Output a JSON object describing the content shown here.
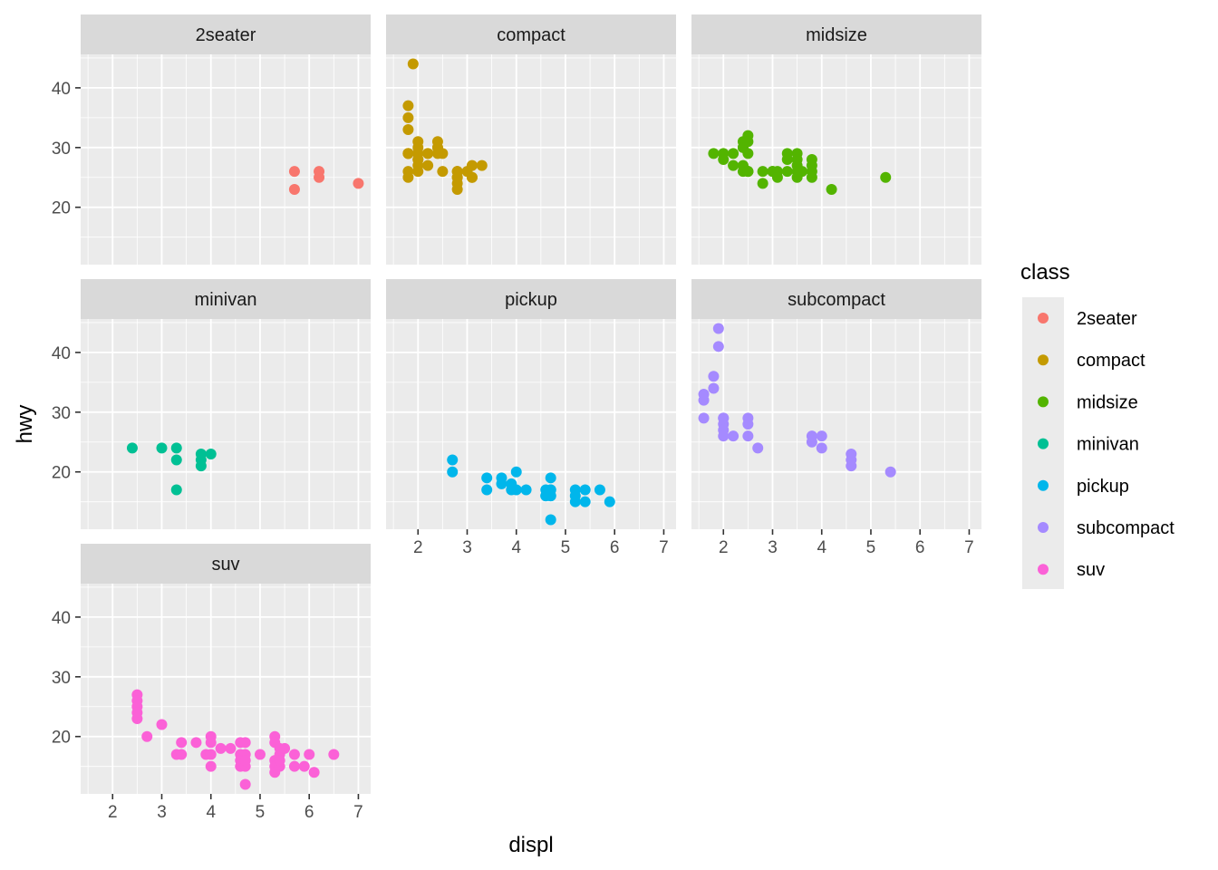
{
  "chart_data": {
    "type": "scatter",
    "xlabel": "displ",
    "ylabel": "hwy",
    "xlim": [
      1.35,
      7.25
    ],
    "ylim": [
      10.4,
      45.6
    ],
    "x_ticks": [
      2,
      3,
      4,
      5,
      6,
      7
    ],
    "y_ticks": [
      20,
      30,
      40
    ],
    "grid": true,
    "legend": {
      "title": "class",
      "placement": "right",
      "entries": [
        "2seater",
        "compact",
        "midsize",
        "minivan",
        "pickup",
        "subcompact",
        "suv"
      ]
    },
    "colors": {
      "2seater": "#F8766D",
      "compact": "#C49A00",
      "midsize": "#53B400",
      "minivan": "#00C094",
      "pickup": "#00B6EB",
      "subcompact": "#A58AFF",
      "suv": "#FB61D7"
    },
    "facets": [
      {
        "name": "2seater",
        "points": [
          [
            5.7,
            26
          ],
          [
            5.7,
            23
          ],
          [
            6.2,
            26
          ],
          [
            6.2,
            25
          ],
          [
            7.0,
            24
          ]
        ]
      },
      {
        "name": "compact",
        "points": [
          [
            1.8,
            29
          ],
          [
            1.8,
            29
          ],
          [
            2.0,
            31
          ],
          [
            2.0,
            30
          ],
          [
            2.8,
            26
          ],
          [
            2.8,
            26
          ],
          [
            3.1,
            27
          ],
          [
            1.8,
            26
          ],
          [
            1.8,
            25
          ],
          [
            2.0,
            28
          ],
          [
            2.0,
            27
          ],
          [
            2.8,
            25
          ],
          [
            2.8,
            25
          ],
          [
            3.1,
            25
          ],
          [
            3.1,
            25
          ],
          [
            2.4,
            30
          ],
          [
            2.4,
            30
          ],
          [
            2.5,
            26
          ],
          [
            2.5,
            29
          ],
          [
            1.8,
            29
          ],
          [
            1.9,
            44
          ],
          [
            1.8,
            37
          ],
          [
            1.8,
            35
          ],
          [
            1.8,
            33
          ],
          [
            2.0,
            29
          ],
          [
            2.0,
            26
          ],
          [
            2.2,
            27
          ],
          [
            2.2,
            29
          ],
          [
            2.4,
            31
          ],
          [
            2.4,
            29
          ],
          [
            3.0,
            26
          ],
          [
            3.3,
            27
          ],
          [
            2.8,
            23
          ],
          [
            2.8,
            24
          ],
          [
            2.0,
            28
          ],
          [
            2.2,
            29
          ]
        ]
      },
      {
        "name": "midsize",
        "points": [
          [
            2.4,
            27
          ],
          [
            2.4,
            30
          ],
          [
            3.1,
            26
          ],
          [
            3.5,
            29
          ],
          [
            3.6,
            26
          ],
          [
            2.4,
            26
          ],
          [
            3.0,
            26
          ],
          [
            3.3,
            28
          ],
          [
            3.8,
            26
          ],
          [
            3.8,
            27
          ],
          [
            3.8,
            28
          ],
          [
            2.4,
            31
          ],
          [
            2.4,
            30
          ],
          [
            2.5,
            32
          ],
          [
            2.5,
            31
          ],
          [
            2.5,
            29
          ],
          [
            2.5,
            26
          ],
          [
            3.3,
            29
          ],
          [
            3.5,
            28
          ],
          [
            2.5,
            26
          ],
          [
            2.8,
            26
          ],
          [
            2.8,
            24
          ],
          [
            3.0,
            26
          ],
          [
            3.5,
            25
          ],
          [
            4.2,
            23
          ],
          [
            5.3,
            25
          ],
          [
            1.8,
            29
          ],
          [
            2.0,
            29
          ],
          [
            2.2,
            29
          ],
          [
            2.0,
            28
          ],
          [
            2.2,
            27
          ],
          [
            2.5,
            26
          ],
          [
            3.5,
            27
          ],
          [
            3.5,
            26
          ],
          [
            3.1,
            25
          ],
          [
            3.3,
            26
          ],
          [
            3.8,
            25
          ]
        ]
      },
      {
        "name": "minivan",
        "points": [
          [
            2.4,
            24
          ],
          [
            3.0,
            24
          ],
          [
            3.3,
            22
          ],
          [
            3.3,
            24
          ],
          [
            3.3,
            17
          ],
          [
            3.8,
            22
          ],
          [
            3.8,
            21
          ],
          [
            3.8,
            23
          ],
          [
            4.0,
            23
          ]
        ]
      },
      {
        "name": "pickup",
        "points": [
          [
            2.7,
            22
          ],
          [
            2.7,
            20
          ],
          [
            3.4,
            19
          ],
          [
            3.4,
            17
          ],
          [
            3.7,
            19
          ],
          [
            3.7,
            18
          ],
          [
            3.9,
            17
          ],
          [
            3.9,
            18
          ],
          [
            4.0,
            20
          ],
          [
            4.0,
            17
          ],
          [
            4.2,
            17
          ],
          [
            4.6,
            17
          ],
          [
            4.6,
            16
          ],
          [
            4.7,
            17
          ],
          [
            4.7,
            12
          ],
          [
            4.7,
            16
          ],
          [
            4.7,
            19
          ],
          [
            5.2,
            17
          ],
          [
            5.2,
            16
          ],
          [
            5.2,
            15
          ],
          [
            5.4,
            17
          ],
          [
            5.4,
            15
          ],
          [
            5.7,
            17
          ],
          [
            5.9,
            15
          ],
          [
            4.6,
            16
          ],
          [
            4.7,
            17
          ],
          [
            4.7,
            16
          ]
        ]
      },
      {
        "name": "subcompact",
        "points": [
          [
            1.6,
            33
          ],
          [
            1.6,
            32
          ],
          [
            1.6,
            29
          ],
          [
            1.8,
            34
          ],
          [
            1.8,
            36
          ],
          [
            1.9,
            44
          ],
          [
            1.9,
            41
          ],
          [
            2.0,
            29
          ],
          [
            2.0,
            28
          ],
          [
            2.0,
            27
          ],
          [
            2.0,
            26
          ],
          [
            2.2,
            26
          ],
          [
            2.5,
            29
          ],
          [
            2.5,
            28
          ],
          [
            2.5,
            26
          ],
          [
            2.7,
            24
          ],
          [
            3.8,
            26
          ],
          [
            3.8,
            25
          ],
          [
            4.0,
            26
          ],
          [
            4.0,
            24
          ],
          [
            4.6,
            23
          ],
          [
            4.6,
            22
          ],
          [
            4.6,
            21
          ],
          [
            5.4,
            20
          ],
          [
            2.0,
            29
          ]
        ]
      },
      {
        "name": "suv",
        "points": [
          [
            2.5,
            27
          ],
          [
            2.5,
            26
          ],
          [
            2.5,
            25
          ],
          [
            2.5,
            24
          ],
          [
            2.5,
            23
          ],
          [
            2.7,
            20
          ],
          [
            3.0,
            22
          ],
          [
            3.3,
            17
          ],
          [
            3.4,
            19
          ],
          [
            3.4,
            17
          ],
          [
            3.7,
            19
          ],
          [
            3.9,
            17
          ],
          [
            4.0,
            20
          ],
          [
            4.0,
            19
          ],
          [
            4.0,
            17
          ],
          [
            4.0,
            15
          ],
          [
            4.2,
            18
          ],
          [
            4.4,
            18
          ],
          [
            4.6,
            17
          ],
          [
            4.6,
            15
          ],
          [
            4.6,
            19
          ],
          [
            4.7,
            17
          ],
          [
            4.7,
            15
          ],
          [
            4.7,
            12
          ],
          [
            4.7,
            19
          ],
          [
            5.0,
            17
          ],
          [
            5.3,
            20
          ],
          [
            5.3,
            19
          ],
          [
            5.3,
            16
          ],
          [
            5.3,
            15
          ],
          [
            5.4,
            18
          ],
          [
            5.4,
            17
          ],
          [
            5.4,
            15
          ],
          [
            5.5,
            18
          ],
          [
            5.7,
            17
          ],
          [
            5.7,
            15
          ],
          [
            5.9,
            15
          ],
          [
            6.0,
            17
          ],
          [
            6.1,
            14
          ],
          [
            6.5,
            17
          ],
          [
            5.3,
            14
          ],
          [
            4.6,
            16
          ],
          [
            4.7,
            16
          ],
          [
            5.4,
            16
          ]
        ]
      }
    ]
  }
}
